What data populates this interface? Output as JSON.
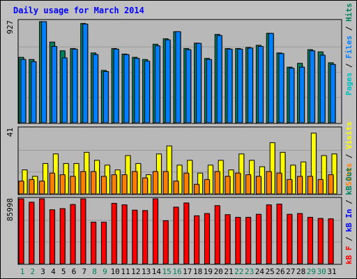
{
  "window": {
    "title": "Daily usage for March 2014"
  },
  "colors": {
    "background": "#c0c0c0",
    "title": "#0000ff",
    "pages": "#00c0c0",
    "files": "#0080ff",
    "hits": "#00805c",
    "visits": "#ffff00",
    "sites": "#ff8000",
    "kb_in": "#0000ff",
    "kb_out": "#00805c",
    "kb_f": "#ff0000",
    "weekend_label": "#00805c",
    "weekday_label": "#000000"
  },
  "chart_data": [
    {
      "type": "bar",
      "panel": "top",
      "axis_max_label": "927",
      "ylim": [
        0,
        927
      ],
      "legend": {
        "placement": "right",
        "items": [
          {
            "name": "Pages",
            "color": "#00c0c0"
          },
          {
            "name": "Files",
            "color": "#0080ff"
          },
          {
            "name": "Hits",
            "color": "#00805c"
          }
        ]
      },
      "categories": [
        "1",
        "2",
        "3",
        "4",
        "5",
        "6",
        "7",
        "8",
        "9",
        "10",
        "11",
        "12",
        "13",
        "14",
        "15",
        "16",
        "17",
        "18",
        "19",
        "20",
        "21",
        "22",
        "23",
        "24",
        "25",
        "26",
        "27",
        "28",
        "29",
        "30",
        "31"
      ],
      "weekend_days": [
        "1",
        "2",
        "8",
        "9",
        "15",
        "16",
        "22",
        "23",
        "29",
        "30"
      ],
      "series": [
        {
          "name": "Hits",
          "values": [
            600,
            580,
            927,
            740,
            660,
            680,
            910,
            640,
            480,
            680,
            630,
            600,
            580,
            720,
            770,
            835,
            680,
            730,
            590,
            810,
            680,
            680,
            690,
            710,
            820,
            640,
            510,
            545,
            670,
            650,
            550
          ]
        },
        {
          "name": "Files",
          "values": [
            580,
            560,
            927,
            700,
            595,
            675,
            905,
            625,
            470,
            675,
            625,
            590,
            565,
            705,
            760,
            835,
            670,
            728,
            580,
            800,
            675,
            675,
            685,
            700,
            820,
            635,
            500,
            510,
            660,
            620,
            535
          ]
        }
      ]
    },
    {
      "type": "bar",
      "panel": "middle",
      "axis_max_label": "41",
      "ylim": [
        0,
        41
      ],
      "legend": {
        "placement": "right",
        "items": [
          {
            "name": "Sites",
            "color": "#ff8000"
          },
          {
            "name": "Visits",
            "color": "#ffff00"
          }
        ]
      },
      "categories": [
        "1",
        "2",
        "3",
        "4",
        "5",
        "6",
        "7",
        "8",
        "9",
        "10",
        "11",
        "12",
        "13",
        "14",
        "15",
        "16",
        "17",
        "18",
        "19",
        "20",
        "21",
        "22",
        "23",
        "24",
        "25",
        "26",
        "27",
        "28",
        "29",
        "30",
        "31"
      ],
      "series": [
        {
          "name": "Visits",
          "values": [
            15,
            11,
            19,
            25,
            19,
            19,
            26,
            21,
            18,
            15,
            24,
            19,
            12,
            25,
            30,
            18,
            21,
            13,
            18,
            21,
            15,
            25,
            21,
            17,
            32,
            26,
            18,
            20,
            38,
            24,
            25
          ]
        },
        {
          "name": "Sites",
          "values": [
            8,
            9,
            8,
            13,
            12,
            11,
            14,
            14,
            11,
            12,
            12,
            14,
            10,
            14,
            14,
            8,
            13,
            6,
            9,
            14,
            11,
            13,
            12,
            11,
            14,
            13,
            9,
            11,
            11,
            9,
            12
          ]
        }
      ]
    },
    {
      "type": "bar",
      "panel": "bottom",
      "axis_max_label": "85998",
      "ylim": [
        0,
        85998
      ],
      "legend": {
        "placement": "right",
        "items": [
          {
            "name": "kB F",
            "color": "#ff0000"
          },
          {
            "name": "kB In",
            "color": "#0000ff"
          },
          {
            "name": "kB Out",
            "color": "#00805c"
          }
        ]
      },
      "categories": [
        "1",
        "2",
        "3",
        "4",
        "5",
        "6",
        "7",
        "8",
        "9",
        "10",
        "11",
        "12",
        "13",
        "14",
        "15",
        "16",
        "17",
        "18",
        "19",
        "20",
        "21",
        "22",
        "23",
        "24",
        "25",
        "26",
        "27",
        "28",
        "29",
        "30",
        "31"
      ],
      "series": [
        {
          "name": "kB F",
          "values": [
            85998,
            81500,
            85998,
            71500,
            73000,
            78500,
            85998,
            55000,
            55000,
            80000,
            78000,
            71000,
            70500,
            85998,
            57000,
            75000,
            80500,
            63500,
            66500,
            77000,
            65000,
            61500,
            61500,
            65500,
            78000,
            79000,
            65500,
            66500,
            61500,
            60000,
            59500
          ]
        }
      ]
    }
  ]
}
